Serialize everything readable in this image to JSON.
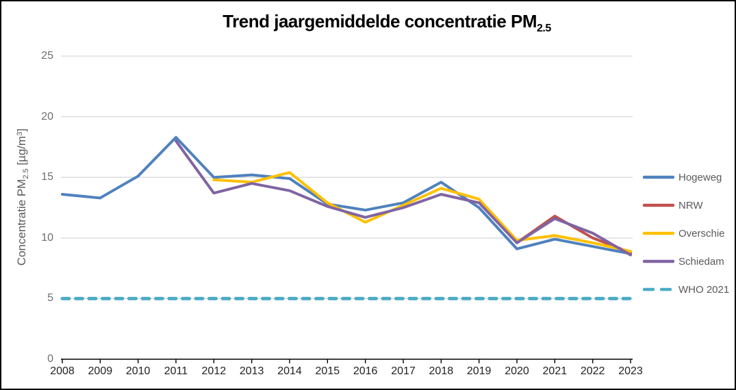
{
  "colors": {
    "gridline": "#D9D9D9",
    "axis": "#000000",
    "y_tick_text": "#6e6e6e",
    "x_tick_text": "#212121",
    "legend_text": "#595959",
    "hogeweg": "#4F81BD",
    "nrw": "#C0504D",
    "overschie": "#FFC000",
    "schiedam": "#8064A2",
    "who": "#4BACC6"
  },
  "title_parts": {
    "pre": "Trend jaargemiddelde concentratie PM",
    "sub": "2.5"
  },
  "ylabel_parts": {
    "pre": "Concentratie PM",
    "sub": "2.5",
    "mid": " [µg/m",
    "sup": "3",
    "post": "]"
  },
  "chart_data": {
    "type": "line",
    "title": "Trend jaargemiddelde concentratie PM2.5",
    "ylabel": "Concentratie PM2.5 [µg/m3]",
    "xlabel": "",
    "x": [
      2008,
      2009,
      2010,
      2011,
      2012,
      2013,
      2014,
      2015,
      2016,
      2017,
      2018,
      2019,
      2020,
      2021,
      2022,
      2023
    ],
    "ylim": [
      0,
      25
    ],
    "yticks": [
      0,
      5,
      10,
      15,
      20,
      25
    ],
    "grid": "horizontal",
    "legend_position": "right",
    "series": [
      {
        "name": "Hogeweg",
        "color": "#4F81BD",
        "style": "solid",
        "start_year": 2008,
        "values": [
          13.6,
          13.3,
          15.1,
          18.3,
          15.0,
          15.2,
          14.9,
          12.8,
          12.3,
          12.9,
          14.6,
          12.5,
          9.1,
          9.9,
          9.3,
          8.7
        ]
      },
      {
        "name": "NRW",
        "color": "#C0504D",
        "style": "solid",
        "start_year": 2020,
        "values": [
          9.6,
          11.8,
          10.0,
          8.8
        ]
      },
      {
        "name": "Overschie",
        "color": "#FFC000",
        "style": "solid",
        "start_year": 2012,
        "values": [
          14.8,
          14.6,
          15.4,
          12.9,
          11.3,
          12.7,
          14.1,
          13.2,
          9.8,
          10.2,
          9.6,
          8.9
        ]
      },
      {
        "name": "Schiedam",
        "color": "#8064A2",
        "style": "solid",
        "start_year": 2011,
        "values": [
          18.0,
          13.7,
          14.5,
          13.9,
          12.6,
          11.7,
          12.5,
          13.6,
          12.9,
          9.6,
          11.6,
          10.4,
          8.6
        ]
      },
      {
        "name": "WHO 2021",
        "color": "#4BACC6",
        "style": "dashed",
        "start_year": 2008,
        "values": [
          5,
          5,
          5,
          5,
          5,
          5,
          5,
          5,
          5,
          5,
          5,
          5,
          5,
          5,
          5,
          5
        ]
      }
    ]
  }
}
